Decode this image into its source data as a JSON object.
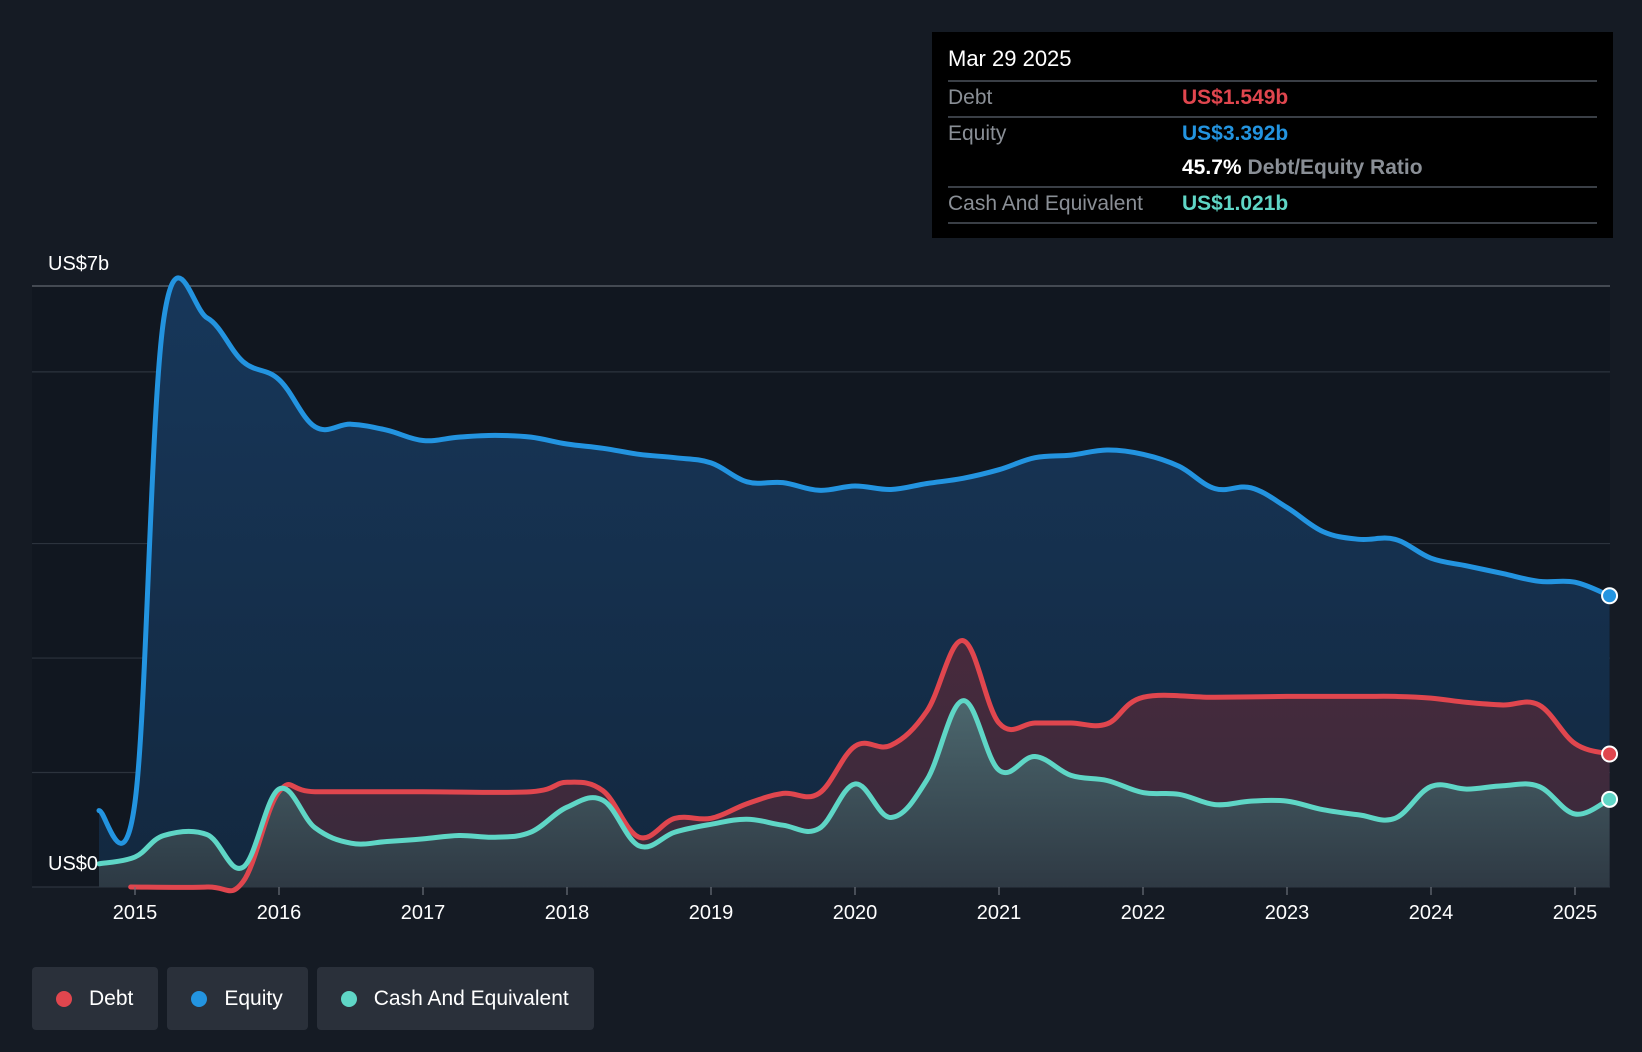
{
  "chart_data": {
    "type": "area",
    "y_axis": {
      "top_label": "US$7b",
      "bottom_label": "US$0",
      "ylim": [
        0,
        7
      ]
    },
    "x_ticks": [
      "2015",
      "2016",
      "2017",
      "2018",
      "2019",
      "2020",
      "2021",
      "2022",
      "2023",
      "2024",
      "2025"
    ],
    "series": [
      {
        "name": "Equity",
        "color": "#2394e0",
        "unit": "US$b",
        "points": [
          [
            2014.75,
            0.89
          ],
          [
            2015.0,
            0.99
          ],
          [
            2015.2,
            6.62
          ],
          [
            2015.5,
            6.63
          ],
          [
            2015.75,
            6.12
          ],
          [
            2016.0,
            5.91
          ],
          [
            2016.25,
            5.36
          ],
          [
            2016.5,
            5.39
          ],
          [
            2016.75,
            5.32
          ],
          [
            2017.0,
            5.2
          ],
          [
            2017.25,
            5.24
          ],
          [
            2017.5,
            5.26
          ],
          [
            2017.75,
            5.24
          ],
          [
            2018.0,
            5.16
          ],
          [
            2018.25,
            5.11
          ],
          [
            2018.5,
            5.04
          ],
          [
            2018.75,
            5.0
          ],
          [
            2019.0,
            4.94
          ],
          [
            2019.25,
            4.72
          ],
          [
            2019.5,
            4.71
          ],
          [
            2019.75,
            4.62
          ],
          [
            2020.0,
            4.67
          ],
          [
            2020.25,
            4.63
          ],
          [
            2020.5,
            4.7
          ],
          [
            2020.75,
            4.76
          ],
          [
            2021.0,
            4.86
          ],
          [
            2021.25,
            5.0
          ],
          [
            2021.5,
            5.03
          ],
          [
            2021.75,
            5.09
          ],
          [
            2022.0,
            5.04
          ],
          [
            2022.25,
            4.9
          ],
          [
            2022.5,
            4.64
          ],
          [
            2022.75,
            4.65
          ],
          [
            2023.0,
            4.42
          ],
          [
            2023.25,
            4.14
          ],
          [
            2023.5,
            4.05
          ],
          [
            2023.75,
            4.05
          ],
          [
            2024.0,
            3.83
          ],
          [
            2024.25,
            3.74
          ],
          [
            2024.5,
            3.65
          ],
          [
            2024.75,
            3.56
          ],
          [
            2025.0,
            3.55
          ],
          [
            2025.24,
            3.392
          ]
        ]
      },
      {
        "name": "Debt",
        "color": "#e0464e",
        "unit": "US$b",
        "points": [
          [
            2014.97,
            0.0
          ],
          [
            2015.5,
            0.0
          ],
          [
            2015.75,
            0.06
          ],
          [
            2016.0,
            1.11
          ],
          [
            2016.25,
            1.11
          ],
          [
            2017.0,
            1.11
          ],
          [
            2017.75,
            1.11
          ],
          [
            2018.0,
            1.22
          ],
          [
            2018.25,
            1.12
          ],
          [
            2018.5,
            0.58
          ],
          [
            2018.75,
            0.8
          ],
          [
            2019.0,
            0.8
          ],
          [
            2019.25,
            0.97
          ],
          [
            2019.5,
            1.09
          ],
          [
            2019.75,
            1.09
          ],
          [
            2020.0,
            1.64
          ],
          [
            2020.25,
            1.65
          ],
          [
            2020.5,
            2.05
          ],
          [
            2020.75,
            2.87
          ],
          [
            2021.0,
            1.91
          ],
          [
            2021.25,
            1.91
          ],
          [
            2021.5,
            1.91
          ],
          [
            2021.75,
            1.9
          ],
          [
            2022.0,
            2.21
          ],
          [
            2022.5,
            2.21
          ],
          [
            2023.0,
            2.22
          ],
          [
            2023.5,
            2.22
          ],
          [
            2023.75,
            2.22
          ],
          [
            2024.0,
            2.2
          ],
          [
            2024.25,
            2.15
          ],
          [
            2024.5,
            2.12
          ],
          [
            2024.75,
            2.12
          ],
          [
            2025.0,
            1.67
          ],
          [
            2025.24,
            1.549
          ]
        ]
      },
      {
        "name": "Cash And Equivalent",
        "color": "#5fd6c6",
        "unit": "US$b",
        "points": [
          [
            2014.75,
            0.27
          ],
          [
            2015.0,
            0.35
          ],
          [
            2015.2,
            0.6
          ],
          [
            2015.5,
            0.61
          ],
          [
            2015.75,
            0.23
          ],
          [
            2016.0,
            1.14
          ],
          [
            2016.25,
            0.69
          ],
          [
            2016.5,
            0.51
          ],
          [
            2016.75,
            0.53
          ],
          [
            2017.0,
            0.56
          ],
          [
            2017.25,
            0.6
          ],
          [
            2017.5,
            0.58
          ],
          [
            2017.75,
            0.64
          ],
          [
            2018.0,
            0.93
          ],
          [
            2018.25,
            1.01
          ],
          [
            2018.5,
            0.48
          ],
          [
            2018.75,
            0.64
          ],
          [
            2019.0,
            0.73
          ],
          [
            2019.25,
            0.79
          ],
          [
            2019.5,
            0.72
          ],
          [
            2019.75,
            0.68
          ],
          [
            2020.0,
            1.2
          ],
          [
            2020.25,
            0.81
          ],
          [
            2020.5,
            1.25
          ],
          [
            2020.75,
            2.17
          ],
          [
            2021.0,
            1.36
          ],
          [
            2021.25,
            1.52
          ],
          [
            2021.5,
            1.3
          ],
          [
            2021.75,
            1.24
          ],
          [
            2022.0,
            1.1
          ],
          [
            2022.25,
            1.08
          ],
          [
            2022.5,
            0.96
          ],
          [
            2022.75,
            1.0
          ],
          [
            2023.0,
            1.0
          ],
          [
            2023.25,
            0.9
          ],
          [
            2023.5,
            0.84
          ],
          [
            2023.75,
            0.8
          ],
          [
            2024.0,
            1.17
          ],
          [
            2024.25,
            1.14
          ],
          [
            2024.5,
            1.18
          ],
          [
            2024.75,
            1.17
          ],
          [
            2025.0,
            0.85
          ],
          [
            2025.24,
            1.021
          ]
        ]
      }
    ]
  },
  "tooltip": {
    "date": "Mar 29 2025",
    "debt_label": "Debt",
    "debt_value": "US$1.549b",
    "equity_label": "Equity",
    "equity_value": "US$3.392b",
    "ratio_value": "45.7%",
    "ratio_label": "Debt/Equity Ratio",
    "cash_label": "Cash And Equivalent",
    "cash_value": "US$1.021b"
  },
  "legend": [
    {
      "label": "Debt",
      "color": "#e0464e"
    },
    {
      "label": "Equity",
      "color": "#2394e0"
    },
    {
      "label": "Cash And Equivalent",
      "color": "#5fd6c6"
    }
  ]
}
